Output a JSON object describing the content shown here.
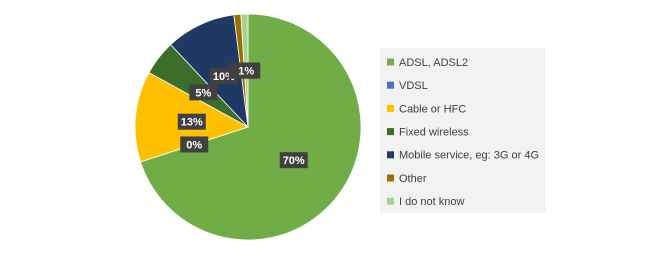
{
  "chart_data": {
    "type": "pie",
    "categories": [
      "ADSL, ADSL2",
      "VDSL",
      "Cable or HFC",
      "Fixed wireless",
      "Mobile service, eg: 3G or 4G",
      "Other",
      "I do not know"
    ],
    "values": [
      70,
      0,
      13,
      5,
      10,
      1,
      1
    ],
    "value_labels": [
      "70%",
      "0%",
      "13%",
      "5%",
      "10%",
      "1%",
      "1%"
    ],
    "colors": [
      "#70ad47",
      "#4472c4",
      "#ffc000",
      "#3b6e2b",
      "#203864",
      "#9c7000",
      "#a9d18e"
    ],
    "legend": "right"
  }
}
